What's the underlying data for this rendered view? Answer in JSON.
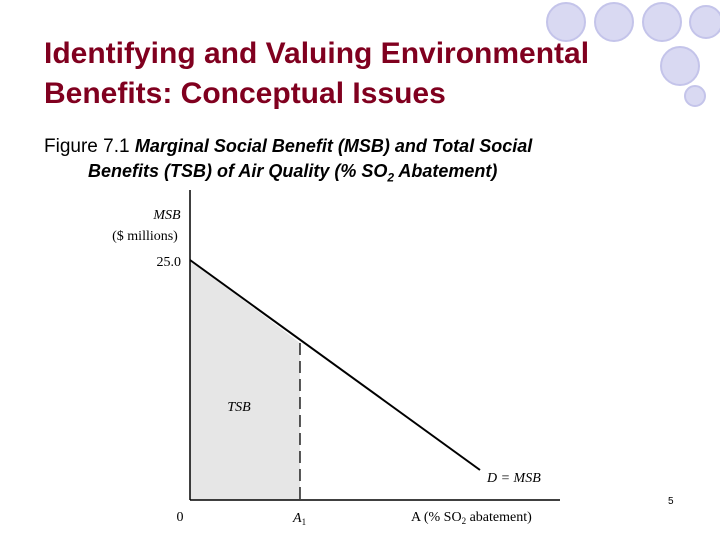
{
  "slide": {
    "title_line1": "Identifying and Valuing Environmental",
    "title_line2": "Benefits: Conceptual Issues",
    "caption_label": "Figure 7.1",
    "caption_line1": "Marginal Social Benefit (MSB) and Total Social",
    "caption_line2_pre": "Benefits (TSB) of Air Quality (% SO",
    "caption_line2_sub": "2",
    "caption_line2_post": " Abatement)",
    "page_number": "5"
  },
  "colors": {
    "title": "#80001f",
    "decor_circle_fill": "#d9d9f2",
    "decor_circle_stroke": "#c4c4ea",
    "shade": "#e6e6e6",
    "line": "#000000"
  },
  "diagram": {
    "y_axis_label_line1": "MSB",
    "y_axis_label_line2": "($ millions)",
    "y_intercept_label": "25.0",
    "origin_label": "0",
    "a1_label": "A",
    "a1_sub": "1",
    "x_axis_label_pre": "A (% SO",
    "x_axis_label_sub": "2",
    "x_axis_label_post": " abatement)",
    "shaded_region_label": "TSB",
    "curve_label": "D = MSB"
  }
}
